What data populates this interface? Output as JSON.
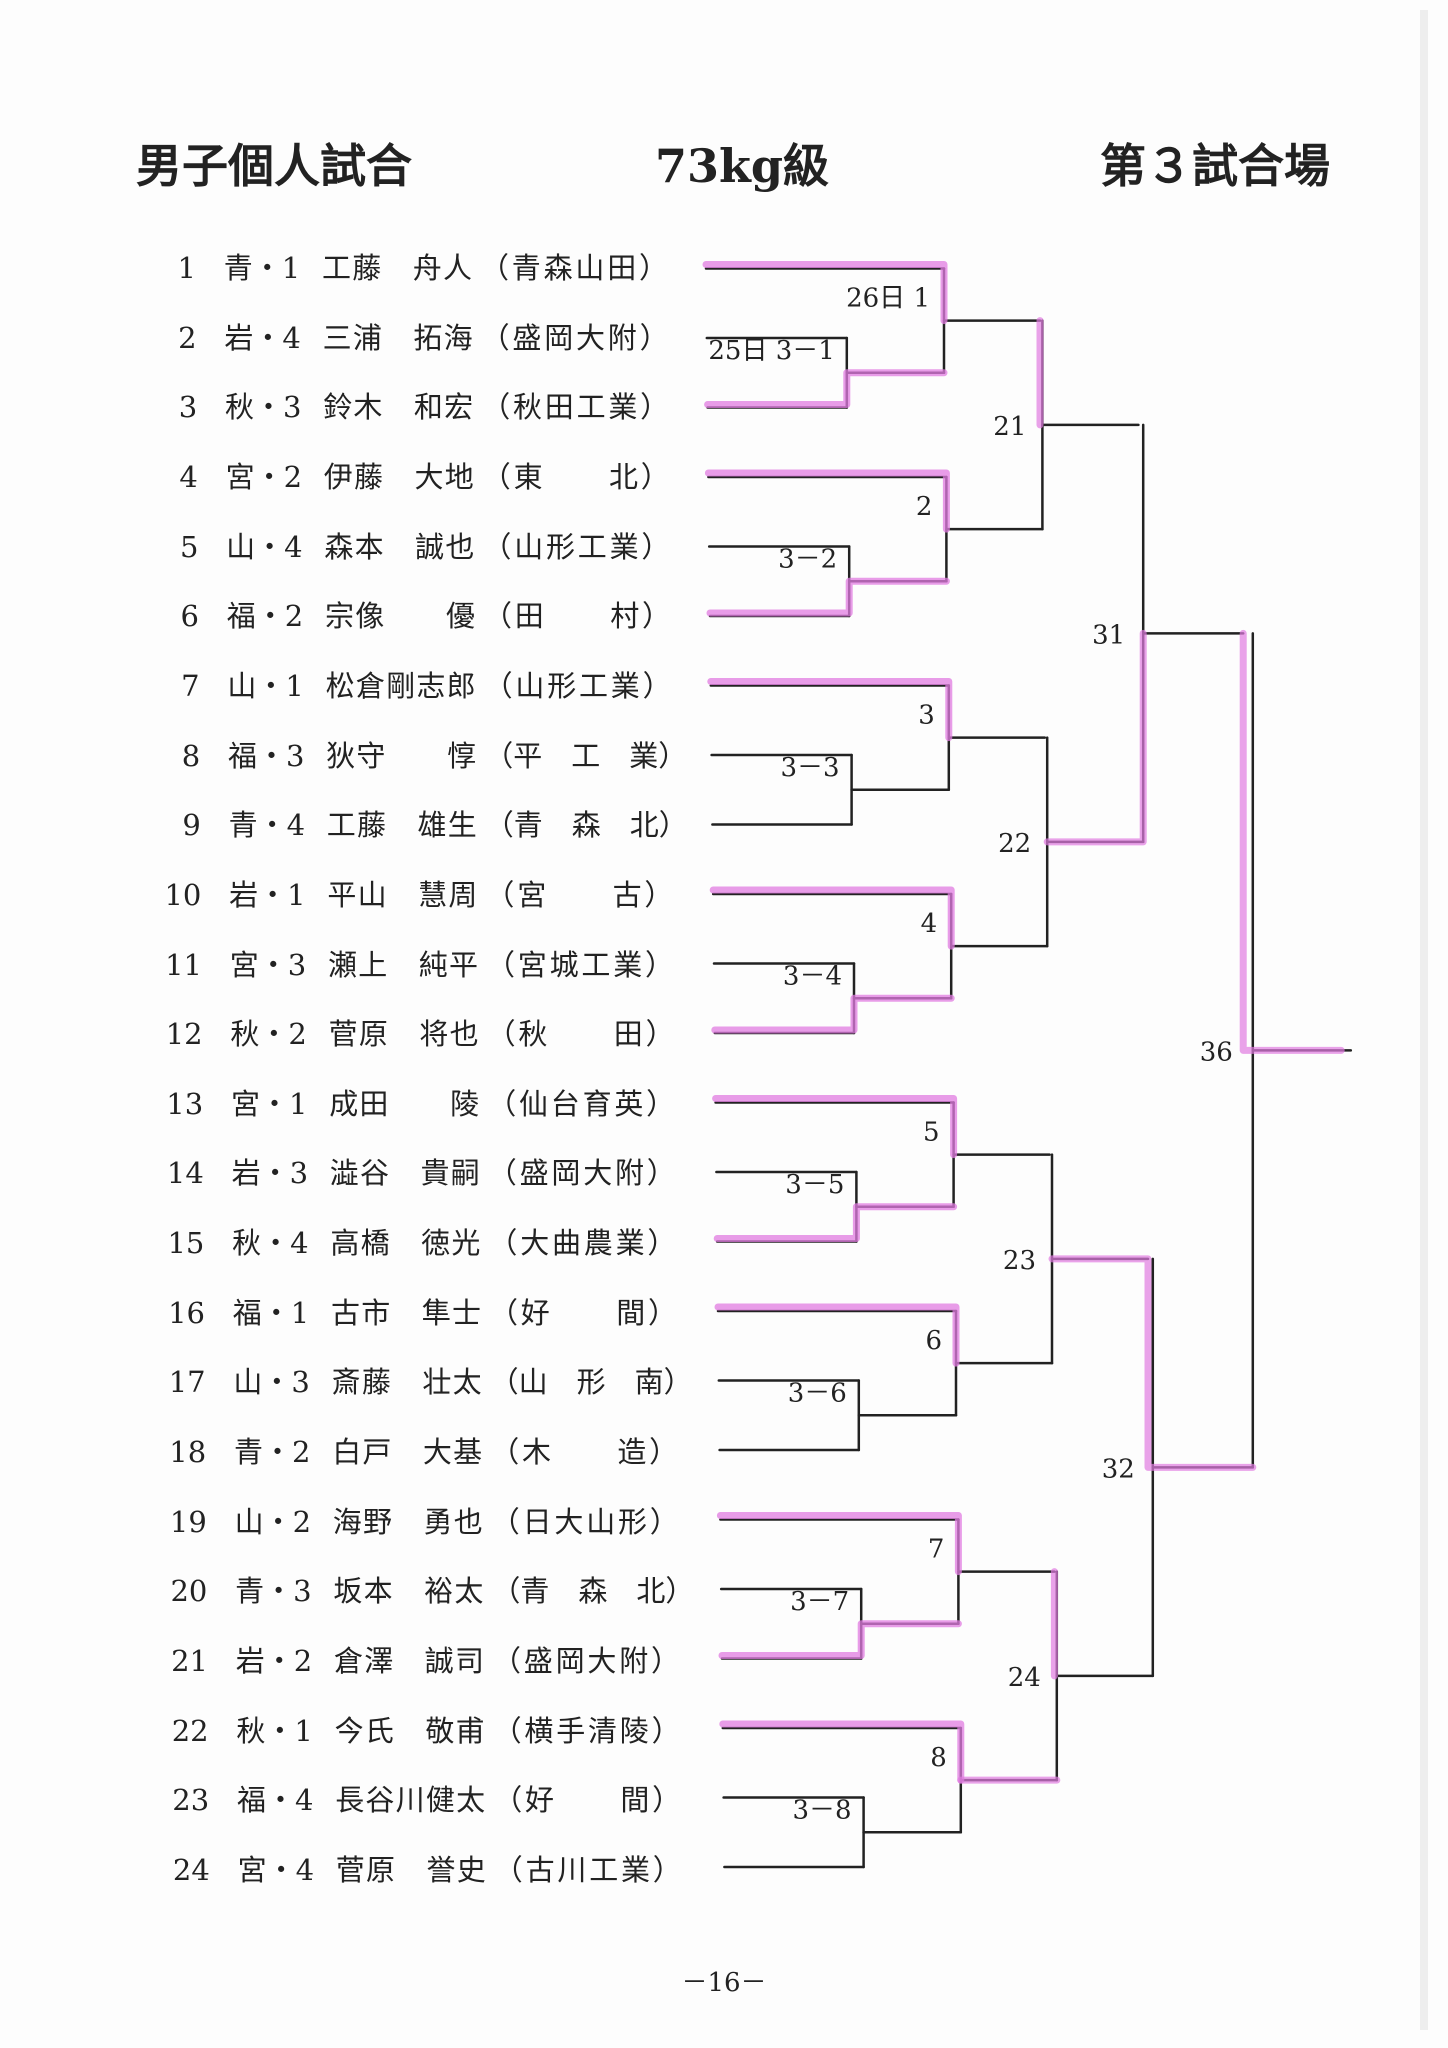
{
  "header": {
    "title": "男子個人試合",
    "weight_class": "73kg級",
    "venue": "第３試合場"
  },
  "players": [
    {
      "no": "1",
      "pref": "青・1",
      "name": "工藤　舟人",
      "school": "（青森山田）"
    },
    {
      "no": "2",
      "pref": "岩・4",
      "name": "三浦　拓海",
      "school": "（盛岡大附）"
    },
    {
      "no": "3",
      "pref": "秋・3",
      "name": "鈴木　和宏",
      "school": "（秋田工業）"
    },
    {
      "no": "4",
      "pref": "宮・2",
      "name": "伊藤　大地",
      "school": "（東　　北）"
    },
    {
      "no": "5",
      "pref": "山・4",
      "name": "森本　誠也",
      "school": "（山形工業）"
    },
    {
      "no": "6",
      "pref": "福・2",
      "name": "宗像　　優",
      "school": "（田　　村）"
    },
    {
      "no": "7",
      "pref": "山・1",
      "name": "松倉剛志郎",
      "school": "（山形工業）"
    },
    {
      "no": "8",
      "pref": "福・3",
      "name": "狄守　　惇",
      "school": "（平　工　業）"
    },
    {
      "no": "9",
      "pref": "青・4",
      "name": "工藤　雄生",
      "school": "（青　森　北）"
    },
    {
      "no": "10",
      "pref": "岩・1",
      "name": "平山　慧周",
      "school": "（宮　　古）"
    },
    {
      "no": "11",
      "pref": "宮・3",
      "name": "瀬上　純平",
      "school": "（宮城工業）"
    },
    {
      "no": "12",
      "pref": "秋・2",
      "name": "菅原　将也",
      "school": "（秋　　田）"
    },
    {
      "no": "13",
      "pref": "宮・1",
      "name": "成田　　陵",
      "school": "（仙台育英）"
    },
    {
      "no": "14",
      "pref": "岩・3",
      "name": "澁谷　貴嗣",
      "school": "（盛岡大附）"
    },
    {
      "no": "15",
      "pref": "秋・4",
      "name": "高橋　徳光",
      "school": "（大曲農業）"
    },
    {
      "no": "16",
      "pref": "福・1",
      "name": "古市　隼士",
      "school": "（好　　間）"
    },
    {
      "no": "17",
      "pref": "山・3",
      "name": "斎藤　壮太",
      "school": "（山　形　南）"
    },
    {
      "no": "18",
      "pref": "青・2",
      "name": "白戸　大基",
      "school": "（木　　造）"
    },
    {
      "no": "19",
      "pref": "山・2",
      "name": "海野　勇也",
      "school": "（日大山形）"
    },
    {
      "no": "20",
      "pref": "青・3",
      "name": "坂本　裕太",
      "school": "（青　森　北）"
    },
    {
      "no": "21",
      "pref": "岩・2",
      "name": "倉澤　誠司",
      "school": "（盛岡大附）"
    },
    {
      "no": "22",
      "pref": "秋・1",
      "name": "今氏　敬甫",
      "school": "（横手清陵）"
    },
    {
      "no": "23",
      "pref": "福・4",
      "name": "長谷川健太",
      "school": "（好　　間）"
    },
    {
      "no": "24",
      "pref": "宮・4",
      "name": "菅原　誉史",
      "school": "（古川工業）"
    }
  ],
  "matches": {
    "prelim": [
      "25日 3－1",
      "3－2",
      "3－3",
      "3－4",
      "3－5",
      "3－6",
      "3－7",
      "3－8"
    ],
    "round1": [
      "26日 1",
      "2",
      "3",
      "4",
      "5",
      "6",
      "7",
      "8"
    ],
    "round2": [
      "21",
      "22",
      "23",
      "24"
    ],
    "semi": [
      "31",
      "32"
    ],
    "final": "36"
  },
  "page_number": "－16－",
  "colors": {
    "line": "#222222",
    "highlight": "#e07be0"
  }
}
